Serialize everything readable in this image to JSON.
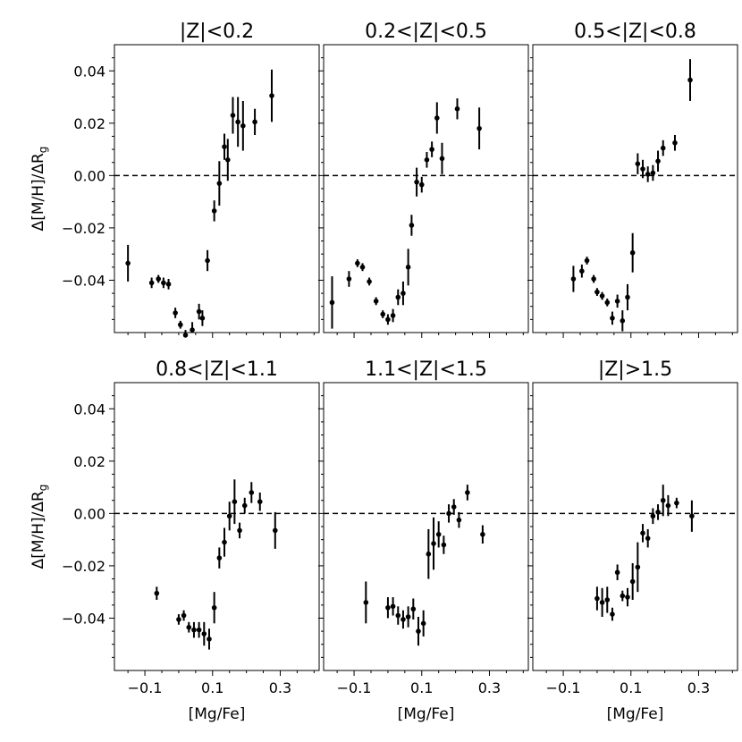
{
  "chart_data": {
    "type": "scatter",
    "layout": "2x3 grid, shared axes",
    "xlabel": "[Mg/Fe]",
    "ylabel": "Δ[M/H]/ΔR_g",
    "xlim": [
      -0.19,
      0.415
    ],
    "ylim": [
      -0.06,
      0.05
    ],
    "xticks": [
      -0.1,
      0.1,
      0.3
    ],
    "xtick_labels": [
      "−0.1",
      "0.1",
      "0.3"
    ],
    "yticks": [
      -0.04,
      -0.02,
      0.0,
      0.02,
      0.04
    ],
    "ytick_labels": [
      "−0.04",
      "−0.02",
      "0.00",
      "0.02",
      "0.04"
    ],
    "reference_line": {
      "y": 0.0,
      "style": "dashed"
    },
    "panels": [
      {
        "title": "|Z|<0.2",
        "points": [
          {
            "x": -0.15,
            "y": -0.0335,
            "err": 0.007
          },
          {
            "x": -0.08,
            "y": -0.041,
            "err": 0.002
          },
          {
            "x": -0.06,
            "y": -0.0395,
            "err": 0.0015
          },
          {
            "x": -0.045,
            "y": -0.041,
            "err": 0.002
          },
          {
            "x": -0.03,
            "y": -0.0415,
            "err": 0.002
          },
          {
            "x": -0.01,
            "y": -0.0525,
            "err": 0.002
          },
          {
            "x": 0.005,
            "y": -0.057,
            "err": 0.0015
          },
          {
            "x": 0.02,
            "y": -0.061,
            "err": 0.002
          },
          {
            "x": 0.04,
            "y": -0.059,
            "err": 0.003
          },
          {
            "x": 0.06,
            "y": -0.052,
            "err": 0.003
          },
          {
            "x": 0.07,
            "y": -0.0545,
            "err": 0.003
          },
          {
            "x": 0.085,
            "y": -0.0325,
            "err": 0.004
          },
          {
            "x": 0.105,
            "y": -0.0135,
            "err": 0.004
          },
          {
            "x": 0.12,
            "y": -0.003,
            "err": 0.0085
          },
          {
            "x": 0.135,
            "y": 0.011,
            "err": 0.005
          },
          {
            "x": 0.145,
            "y": 0.006,
            "err": 0.008
          },
          {
            "x": 0.16,
            "y": 0.023,
            "err": 0.007
          },
          {
            "x": 0.175,
            "y": 0.0205,
            "err": 0.0095
          },
          {
            "x": 0.19,
            "y": 0.019,
            "err": 0.0095
          },
          {
            "x": 0.225,
            "y": 0.0205,
            "err": 0.005
          },
          {
            "x": 0.275,
            "y": 0.0305,
            "err": 0.01
          }
        ]
      },
      {
        "title": "0.2<|Z|<0.5",
        "points": [
          {
            "x": -0.165,
            "y": -0.0485,
            "err": 0.01
          },
          {
            "x": -0.115,
            "y": -0.0395,
            "err": 0.003
          },
          {
            "x": -0.09,
            "y": -0.0335,
            "err": 0.0015
          },
          {
            "x": -0.075,
            "y": -0.035,
            "err": 0.0015
          },
          {
            "x": -0.055,
            "y": -0.0405,
            "err": 0.0015
          },
          {
            "x": -0.035,
            "y": -0.048,
            "err": 0.0015
          },
          {
            "x": -0.015,
            "y": -0.053,
            "err": 0.0015
          },
          {
            "x": 0.0,
            "y": -0.055,
            "err": 0.002
          },
          {
            "x": 0.015,
            "y": -0.0535,
            "err": 0.0025
          },
          {
            "x": 0.03,
            "y": -0.0465,
            "err": 0.003
          },
          {
            "x": 0.045,
            "y": -0.045,
            "err": 0.0045
          },
          {
            "x": 0.06,
            "y": -0.035,
            "err": 0.007
          },
          {
            "x": 0.07,
            "y": -0.019,
            "err": 0.004
          },
          {
            "x": 0.085,
            "y": -0.0025,
            "err": 0.0055
          },
          {
            "x": 0.1,
            "y": -0.0035,
            "err": 0.003
          },
          {
            "x": 0.115,
            "y": 0.006,
            "err": 0.003
          },
          {
            "x": 0.13,
            "y": 0.01,
            "err": 0.003
          },
          {
            "x": 0.145,
            "y": 0.022,
            "err": 0.006
          },
          {
            "x": 0.16,
            "y": 0.0065,
            "err": 0.006
          },
          {
            "x": 0.205,
            "y": 0.0255,
            "err": 0.004
          },
          {
            "x": 0.27,
            "y": 0.018,
            "err": 0.008
          }
        ]
      },
      {
        "title": "0.5<|Z|<0.8",
        "points": [
          {
            "x": -0.07,
            "y": -0.0395,
            "err": 0.005
          },
          {
            "x": -0.045,
            "y": -0.0365,
            "err": 0.0025
          },
          {
            "x": -0.03,
            "y": -0.0325,
            "err": 0.0015
          },
          {
            "x": -0.01,
            "y": -0.0395,
            "err": 0.0015
          },
          {
            "x": 0.0,
            "y": -0.0445,
            "err": 0.0015
          },
          {
            "x": 0.015,
            "y": -0.046,
            "err": 0.0015
          },
          {
            "x": 0.03,
            "y": -0.0485,
            "err": 0.0015
          },
          {
            "x": 0.045,
            "y": -0.0545,
            "err": 0.0025
          },
          {
            "x": 0.06,
            "y": -0.048,
            "err": 0.0025
          },
          {
            "x": 0.075,
            "y": -0.0555,
            "err": 0.004
          },
          {
            "x": 0.09,
            "y": -0.0465,
            "err": 0.005
          },
          {
            "x": 0.105,
            "y": -0.0295,
            "err": 0.0075
          },
          {
            "x": 0.12,
            "y": 0.0045,
            "err": 0.004
          },
          {
            "x": 0.135,
            "y": 0.0025,
            "err": 0.0035
          },
          {
            "x": 0.15,
            "y": 0.0005,
            "err": 0.003
          },
          {
            "x": 0.165,
            "y": 0.001,
            "err": 0.003
          },
          {
            "x": 0.18,
            "y": 0.0055,
            "err": 0.004
          },
          {
            "x": 0.195,
            "y": 0.0105,
            "err": 0.003
          },
          {
            "x": 0.23,
            "y": 0.0125,
            "err": 0.003
          },
          {
            "x": 0.275,
            "y": 0.0365,
            "err": 0.008
          }
        ]
      },
      {
        "title": "0.8<|Z|<1.1",
        "points": [
          {
            "x": -0.065,
            "y": -0.0305,
            "err": 0.0025
          },
          {
            "x": 0.0,
            "y": -0.0405,
            "err": 0.002
          },
          {
            "x": 0.015,
            "y": -0.039,
            "err": 0.002
          },
          {
            "x": 0.03,
            "y": -0.0435,
            "err": 0.002
          },
          {
            "x": 0.045,
            "y": -0.0445,
            "err": 0.003
          },
          {
            "x": 0.06,
            "y": -0.0445,
            "err": 0.003
          },
          {
            "x": 0.075,
            "y": -0.046,
            "err": 0.0045
          },
          {
            "x": 0.09,
            "y": -0.048,
            "err": 0.004
          },
          {
            "x": 0.105,
            "y": -0.036,
            "err": 0.006
          },
          {
            "x": 0.12,
            "y": -0.017,
            "err": 0.004
          },
          {
            "x": 0.135,
            "y": -0.011,
            "err": 0.0055
          },
          {
            "x": 0.15,
            "y": -0.001,
            "err": 0.0055
          },
          {
            "x": 0.165,
            "y": 0.0045,
            "err": 0.0085
          },
          {
            "x": 0.18,
            "y": -0.0065,
            "err": 0.003
          },
          {
            "x": 0.195,
            "y": 0.003,
            "err": 0.003
          },
          {
            "x": 0.215,
            "y": 0.008,
            "err": 0.004
          },
          {
            "x": 0.24,
            "y": 0.0045,
            "err": 0.0035
          },
          {
            "x": 0.285,
            "y": -0.0065,
            "err": 0.007
          }
        ]
      },
      {
        "title": "1.1<|Z|<1.5",
        "points": [
          {
            "x": -0.065,
            "y": -0.034,
            "err": 0.008
          },
          {
            "x": 0.0,
            "y": -0.036,
            "err": 0.004
          },
          {
            "x": 0.015,
            "y": -0.0355,
            "err": 0.0035
          },
          {
            "x": 0.03,
            "y": -0.039,
            "err": 0.0035
          },
          {
            "x": 0.045,
            "y": -0.0405,
            "err": 0.0035
          },
          {
            "x": 0.06,
            "y": -0.0395,
            "err": 0.004
          },
          {
            "x": 0.075,
            "y": -0.0365,
            "err": 0.004
          },
          {
            "x": 0.09,
            "y": -0.045,
            "err": 0.0055
          },
          {
            "x": 0.105,
            "y": -0.042,
            "err": 0.005
          },
          {
            "x": 0.12,
            "y": -0.0155,
            "err": 0.0095
          },
          {
            "x": 0.135,
            "y": -0.0115,
            "err": 0.01
          },
          {
            "x": 0.15,
            "y": -0.008,
            "err": 0.005
          },
          {
            "x": 0.165,
            "y": -0.012,
            "err": 0.0035
          },
          {
            "x": 0.18,
            "y": 0.0,
            "err": 0.0035
          },
          {
            "x": 0.195,
            "y": 0.0025,
            "err": 0.003
          },
          {
            "x": 0.21,
            "y": -0.0025,
            "err": 0.003
          },
          {
            "x": 0.235,
            "y": 0.008,
            "err": 0.003
          },
          {
            "x": 0.28,
            "y": -0.008,
            "err": 0.0035
          }
        ]
      },
      {
        "title": "|Z|>1.5",
        "points": [
          {
            "x": 0.0,
            "y": -0.0325,
            "err": 0.0045
          },
          {
            "x": 0.015,
            "y": -0.034,
            "err": 0.0055
          },
          {
            "x": 0.03,
            "y": -0.033,
            "err": 0.005
          },
          {
            "x": 0.045,
            "y": -0.0385,
            "err": 0.0025
          },
          {
            "x": 0.06,
            "y": -0.0225,
            "err": 0.003
          },
          {
            "x": 0.075,
            "y": -0.0315,
            "err": 0.002
          },
          {
            "x": 0.09,
            "y": -0.032,
            "err": 0.0035
          },
          {
            "x": 0.105,
            "y": -0.026,
            "err": 0.007
          },
          {
            "x": 0.12,
            "y": -0.0205,
            "err": 0.0095
          },
          {
            "x": 0.135,
            "y": -0.0075,
            "err": 0.0035
          },
          {
            "x": 0.15,
            "y": -0.0095,
            "err": 0.0035
          },
          {
            "x": 0.165,
            "y": -0.001,
            "err": 0.003
          },
          {
            "x": 0.18,
            "y": 0.0005,
            "err": 0.003
          },
          {
            "x": 0.195,
            "y": 0.005,
            "err": 0.006
          },
          {
            "x": 0.21,
            "y": 0.003,
            "err": 0.004
          },
          {
            "x": 0.235,
            "y": 0.004,
            "err": 0.002
          },
          {
            "x": 0.28,
            "y": -0.001,
            "err": 0.006
          }
        ]
      }
    ]
  }
}
